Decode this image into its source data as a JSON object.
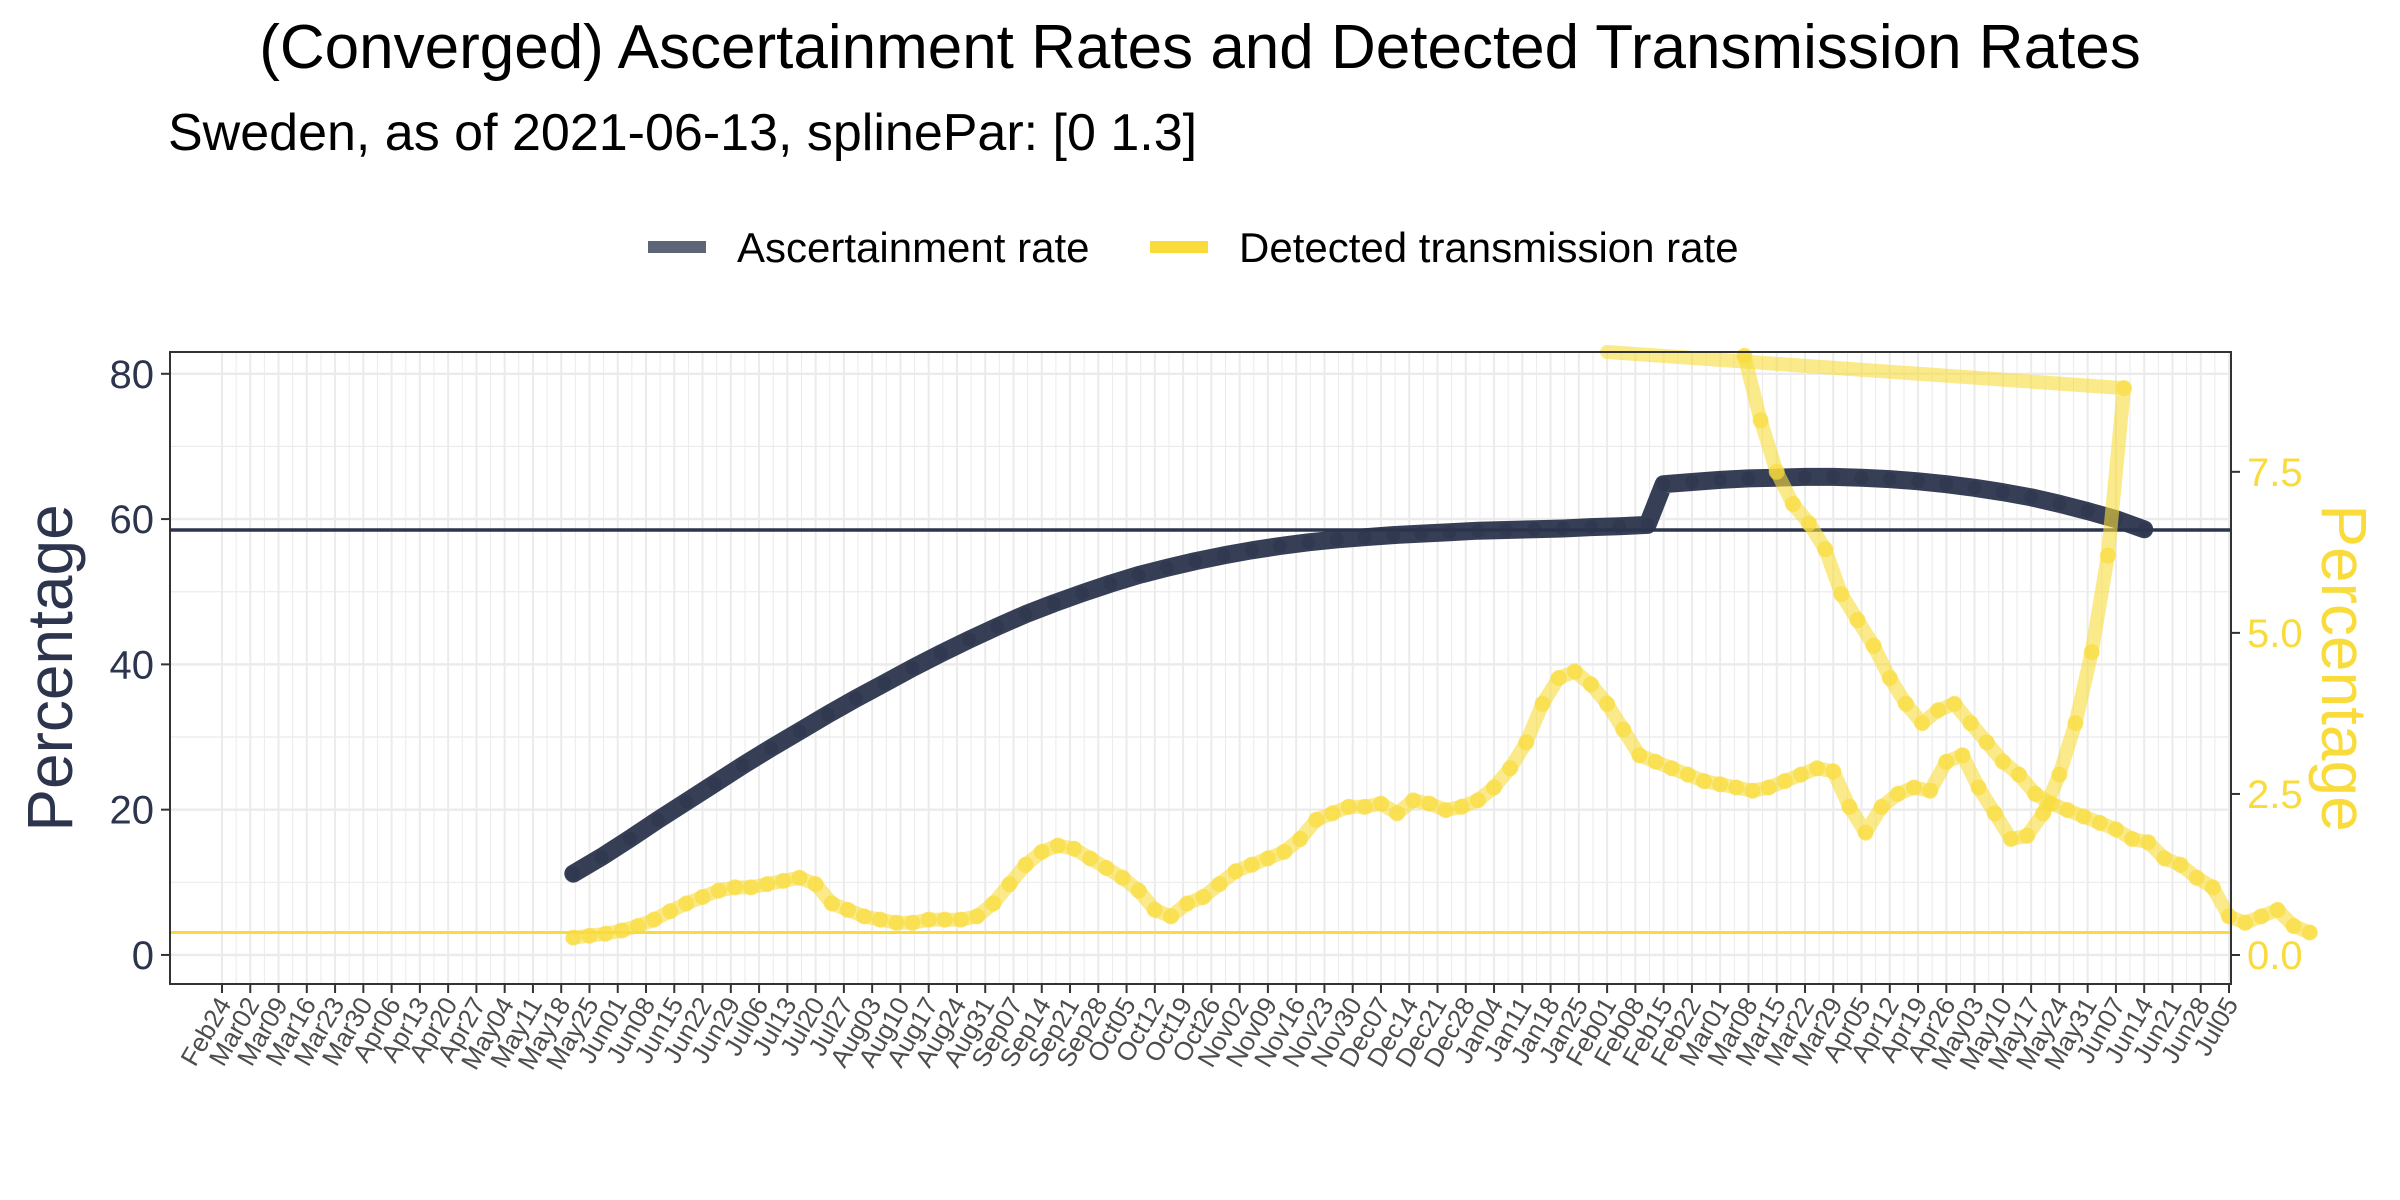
{
  "chart_data": {
    "type": "line",
    "title": "(Converged) Ascertainment Rates and Detected Transmission Rates",
    "subtitle": "Sweden, as of 2021-06-13, splinePar: [0 1.3]",
    "legend": {
      "position": "top",
      "items": [
        {
          "label": "Ascertainment rate",
          "color": "#5f6578"
        },
        {
          "label": "Detected transmission rate",
          "color": "#f9dc3c"
        }
      ]
    },
    "x_axis": {
      "type": "date",
      "range": [
        "2020-02-24",
        "2021-07-05"
      ],
      "tick_labels": [
        "Feb24",
        "Mar02",
        "Mar09",
        "Mar16",
        "Mar23",
        "Mar30",
        "Apr06",
        "Apr13",
        "Apr20",
        "Apr27",
        "May04",
        "May11",
        "May18",
        "May25",
        "Jun01",
        "Jun08",
        "Jun15",
        "Jun22",
        "Jun29",
        "Jul06",
        "Jul13",
        "Jul20",
        "Jul27",
        "Aug03",
        "Aug10",
        "Aug17",
        "Aug24",
        "Aug31",
        "Sep07",
        "Sep14",
        "Sep21",
        "Sep28",
        "Oct05",
        "Oct12",
        "Oct19",
        "Oct26",
        "Nov02",
        "Nov09",
        "Nov16",
        "Nov23",
        "Nov30",
        "Dec07",
        "Dec14",
        "Dec21",
        "Dec28",
        "Jan04",
        "Jan11",
        "Jan18",
        "Jan25",
        "Feb01",
        "Feb08",
        "Feb15",
        "Feb22",
        "Mar01",
        "Mar08",
        "Mar15",
        "Mar22",
        "Mar29",
        "Apr05",
        "Apr12",
        "Apr19",
        "Apr26",
        "May03",
        "May10",
        "May17",
        "May24",
        "May31",
        "Jun07",
        "Jun14",
        "Jun21",
        "Jun28",
        "Jul05"
      ]
    },
    "y_left": {
      "label": "Percentage",
      "ylim": [
        -4,
        83
      ],
      "ticks": [
        0,
        20,
        40,
        60,
        80
      ],
      "tick_labels": [
        "0",
        "20",
        "40",
        "60",
        "80"
      ],
      "reference_line": 58.5,
      "reference_color": "#2c354d"
    },
    "y_right": {
      "label": "Percentage",
      "ylim": [
        -0.45,
        9.36
      ],
      "ticks": [
        0,
        2.5,
        5.0,
        7.5
      ],
      "tick_labels": [
        "0.0",
        "2.5",
        "5.0",
        "7.5"
      ],
      "reference_line": 0.35,
      "reference_color": "#f9dc3c"
    },
    "series": [
      {
        "name": "Ascertainment rate",
        "axis": "left",
        "color": "#2c354d",
        "start": "2020-05-21",
        "knots_day": [
          0,
          7,
          14,
          21,
          28,
          35,
          42,
          49,
          56,
          63,
          70,
          77,
          84,
          91,
          98,
          105,
          112,
          119,
          126,
          133,
          140,
          147,
          154,
          161,
          168,
          175,
          182,
          189,
          196,
          203,
          210,
          217,
          224,
          231,
          238,
          245,
          252,
          259,
          266,
          273,
          280,
          287,
          294,
          301,
          308,
          315,
          322,
          329,
          336,
          343,
          350,
          357,
          364,
          371,
          378,
          385
        ],
        "knots_value": [
          11.2,
          13.5,
          16.0,
          18.6,
          21.1,
          23.6,
          26.1,
          28.5,
          30.8,
          33.1,
          35.3,
          37.4,
          39.5,
          41.5,
          43.4,
          45.2,
          46.9,
          48.4,
          49.8,
          51.1,
          52.3,
          53.3,
          54.2,
          55.0,
          55.7,
          56.3,
          56.8,
          57.2,
          57.5,
          57.8,
          58.0,
          58.2,
          58.4,
          58.5,
          58.6,
          58.7,
          58.9,
          59.0,
          59.2,
          59.4,
          59.6,
          59.8,
          60.0,
          60.3,
          60.6,
          60.9,
          61.3,
          61.7,
          62.1,
          62.5,
          62.9,
          63.3,
          63.7,
          64.0,
          64.3,
          64.6
        ],
        "knots_value_late": {
          "start": "2021-02-15",
          "values": [
            64.8,
            65.1,
            65.4,
            65.6,
            65.7,
            65.8,
            65.8,
            65.7,
            65.5,
            65.2,
            64.8,
            64.3,
            63.7,
            63.0,
            62.1,
            61.1,
            60.0,
            58.6
          ]
        }
      },
      {
        "name": "Detected transmission rate",
        "axis": "right",
        "color": "#f9dc3c",
        "start": "2020-05-21",
        "interval_days": 4,
        "values": [
          0.27,
          0.3,
          0.33,
          0.38,
          0.45,
          0.55,
          0.68,
          0.8,
          0.9,
          1.0,
          1.05,
          1.05,
          1.1,
          1.15,
          1.2,
          1.1,
          0.8,
          0.7,
          0.6,
          0.55,
          0.5,
          0.5,
          0.55,
          0.55,
          0.55,
          0.6,
          0.8,
          1.1,
          1.4,
          1.6,
          1.7,
          1.65,
          1.5,
          1.35,
          1.2,
          1.0,
          0.7,
          0.6,
          0.8,
          0.9,
          1.1,
          1.3,
          1.4,
          1.5,
          1.6,
          1.8,
          2.1,
          2.2,
          2.3,
          2.3,
          2.35,
          2.2,
          2.4,
          2.35,
          2.25,
          2.3,
          2.4,
          2.6,
          2.9,
          3.3,
          3.9,
          4.3,
          4.4,
          4.2,
          3.9,
          3.5,
          3.1,
          3.0,
          2.9,
          2.8,
          2.7,
          2.65,
          2.6,
          2.55,
          2.6,
          2.7,
          2.8,
          2.9,
          2.85,
          2.3,
          1.9,
          2.3,
          2.5,
          2.6,
          2.55,
          3.0,
          3.1,
          2.6,
          2.2,
          1.8,
          1.85,
          2.2,
          2.8,
          3.6,
          4.7,
          6.2,
          8.8
        ],
        "gap_after": "2021-02-04",
        "late_start": "2021-03-07",
        "late_values": [
          9.3,
          8.3,
          7.5,
          7.0,
          6.7,
          6.3,
          5.6,
          5.2,
          4.8,
          4.3,
          3.9,
          3.6,
          3.8,
          3.9,
          3.6,
          3.3,
          3.0,
          2.8,
          2.5,
          2.35,
          2.25,
          2.15,
          2.05,
          1.95,
          1.8,
          1.75,
          1.5,
          1.4,
          1.2,
          1.05,
          0.6,
          0.5,
          0.6,
          0.7,
          0.45,
          0.35
        ],
        "spike_day": "2021-02-01",
        "spike_value": 9.36
      }
    ]
  }
}
